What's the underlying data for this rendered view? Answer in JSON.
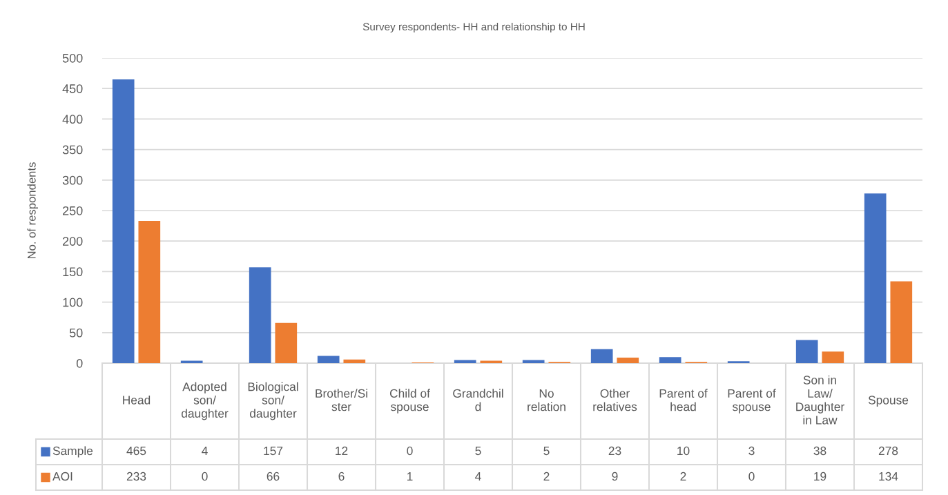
{
  "chart_data": {
    "type": "bar",
    "title": "Survey respondents- HH and relationship to HH",
    "ylabel": "No. of respondents",
    "categories": [
      "Head",
      "Adopted\nson/\ndaughter",
      "Biological\nson/\ndaughter",
      "Brother/Si\nster",
      "Child of\nspouse",
      "Grandchil\nd",
      "No\nrelation",
      "Other\nrelatives",
      "Parent of\nhead",
      "Parent of\nspouse",
      "Son in\nLaw/\nDaughter\nin Law",
      "Spouse"
    ],
    "series": [
      {
        "name": "Sample",
        "color": "#4472c4",
        "values": [
          465,
          4,
          157,
          12,
          0,
          5,
          5,
          23,
          10,
          3,
          38,
          278
        ]
      },
      {
        "name": "AOI",
        "color": "#ed7d31",
        "values": [
          233,
          0,
          66,
          6,
          1,
          4,
          2,
          9,
          2,
          0,
          19,
          134
        ]
      }
    ],
    "ylim": [
      0,
      500
    ],
    "yticks": [
      0,
      50,
      100,
      150,
      200,
      250,
      300,
      350,
      400,
      450,
      500
    ],
    "grid": "y",
    "legend": "bottom",
    "data_labels": true
  }
}
